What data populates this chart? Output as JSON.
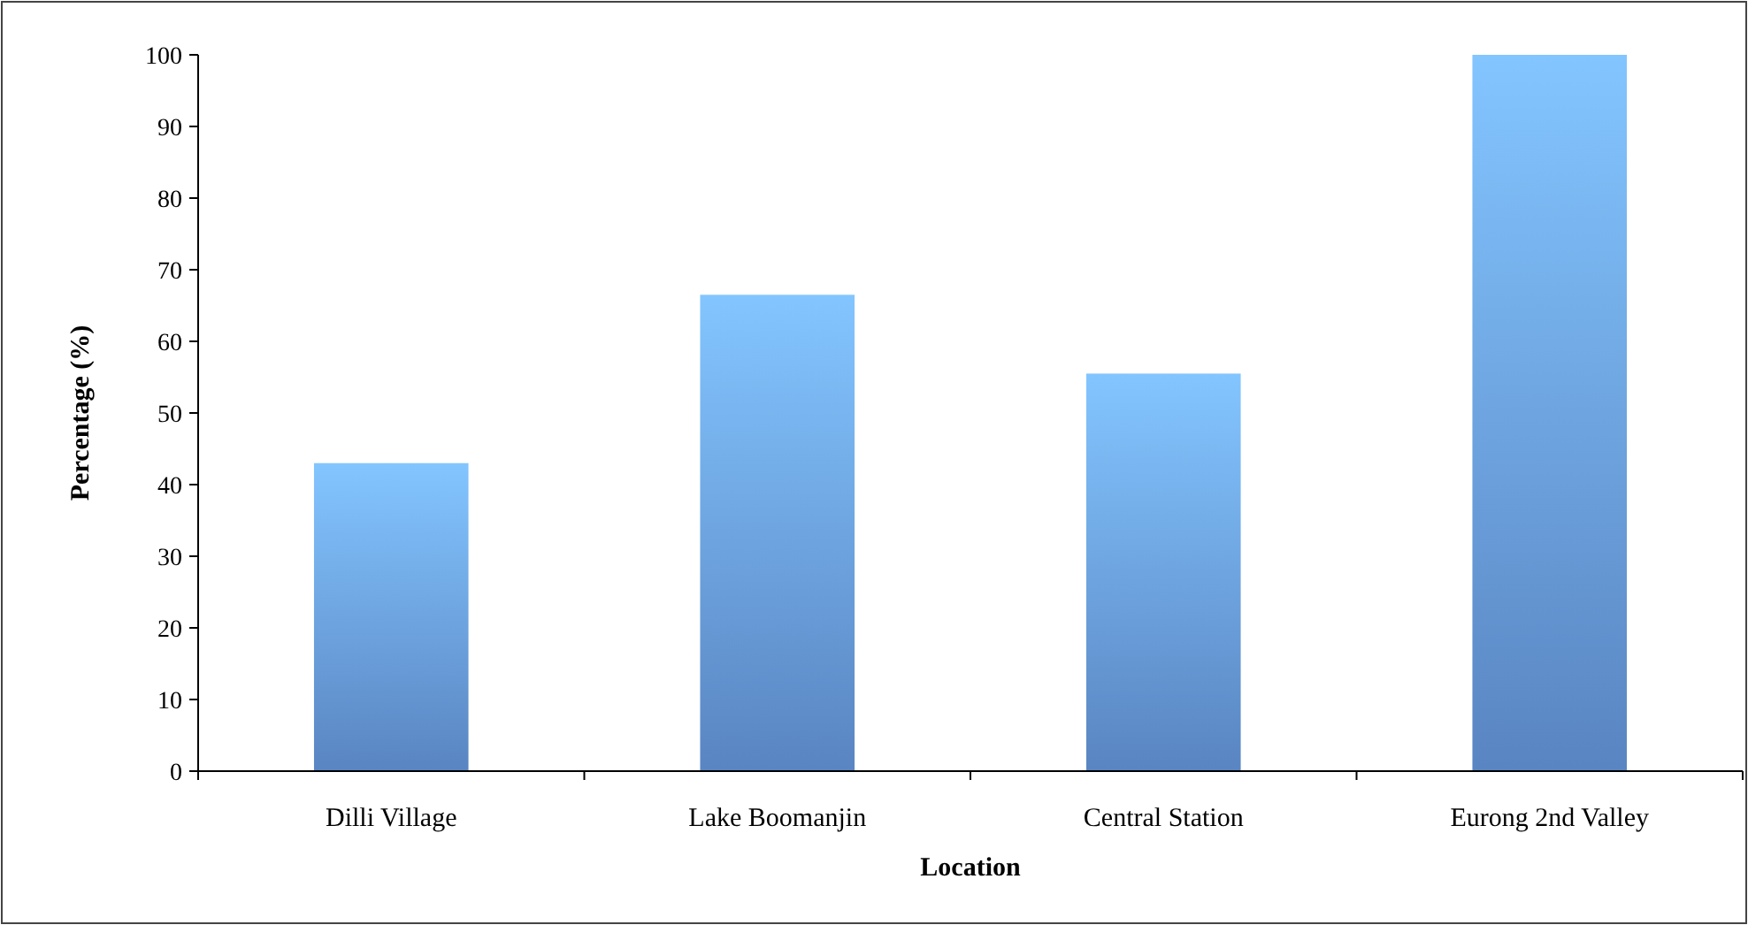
{
  "chart_data": {
    "type": "bar",
    "xlabel": "Location",
    "ylabel": "Percentage (%)",
    "categories": [
      "Dilli Village",
      "Lake Boomanjin",
      "Central Station",
      "Eurong 2nd Valley"
    ],
    "values": [
      43,
      66.5,
      55.5,
      100
    ],
    "color": "#6a9fe8",
    "ylim": [
      0,
      100
    ],
    "yticks": [
      0,
      10,
      20,
      30,
      40,
      50,
      60,
      70,
      80,
      90,
      100
    ],
    "grid": false
  }
}
